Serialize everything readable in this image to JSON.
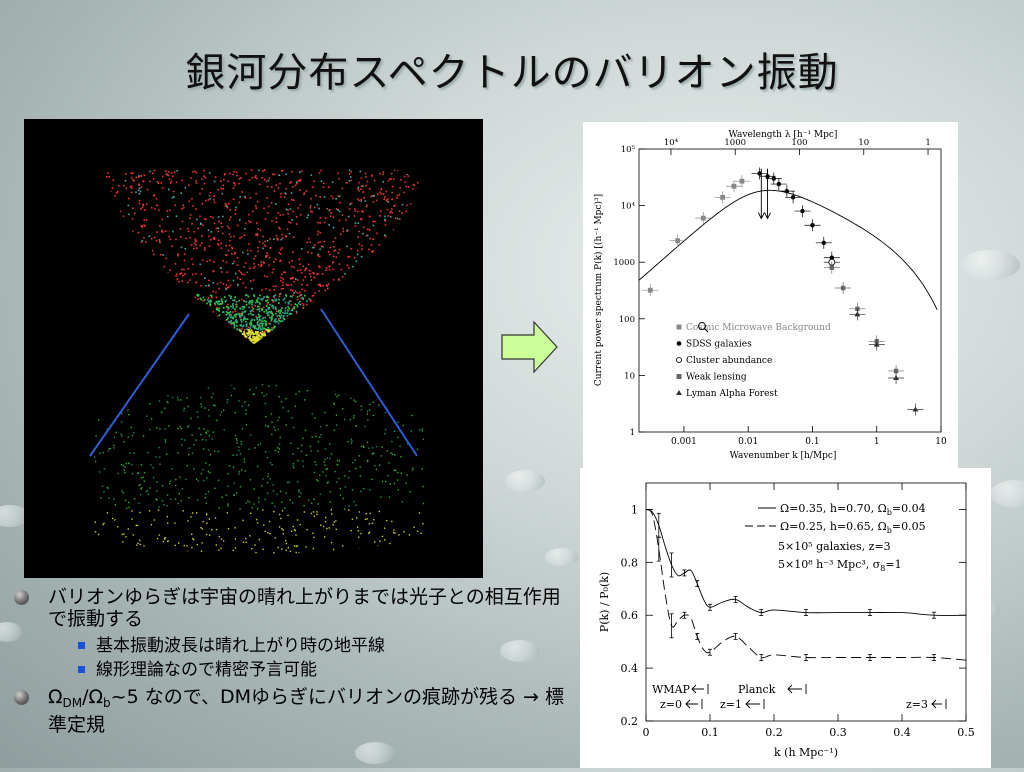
{
  "slide": {
    "title": "銀河分布スペクトルのバリオン振動"
  },
  "bullets": {
    "b1_text": "バリオンゆらぎは宇宙の晴れ上がりまでは光子との相互作用で振動する",
    "b1_sub1": "基本振動波長は晴れ上がり時の地平線",
    "b1_sub2": "線形理論なので精密予言可能",
    "b2_omega": "Ω",
    "b2_dm_sub": "DM",
    "b2_slash": "/Ω",
    "b2_b_sub": "b",
    "b2_rest": "~5 なので、DMゆらぎにバリオンの痕跡が残る → 標準定規"
  },
  "figure1": {
    "top_label": "Wavelength λ [h⁻¹ Mpc]",
    "top_ticks": [
      "10⁴",
      "1000",
      "100",
      "10",
      "1"
    ],
    "ylabel": "Current power spectrum P(k) [(h⁻¹ Mpc)³]",
    "xlabel": "Wavenumber k [h/Mpc]",
    "xticks": [
      "0.001",
      "0.01",
      "0.1",
      "1",
      "10"
    ],
    "yticks": [
      "10⁵",
      "10⁴",
      "1000",
      "100",
      "10",
      "1"
    ],
    "legend": [
      "Cosmic Microwave Background",
      "SDSS galaxies",
      "Cluster abundance",
      "Weak lensing",
      "Lyman Alpha Forest"
    ]
  },
  "figure2": {
    "ylabel": "P(k) / P₀(k)",
    "xlabel": "k (h Mpc⁻¹)",
    "xticks": [
      "0",
      "0.1",
      "0.2",
      "0.3",
      "0.4",
      "0.5"
    ],
    "yticks": [
      "0.2",
      "0.4",
      "0.6",
      "0.8",
      "1"
    ],
    "legend1": "Ω=0.35, h=0.70, Ω",
    "legend1_sub": "b",
    "legend1_end": "=0.04",
    "legend2": "Ω=0.25, h=0.65, Ω",
    "legend2_sub": "b",
    "legend2_end": "=0.05",
    "note1": "5×10⁵ galaxies, z=3",
    "note2": "5×10⁸ h⁻³ Mpc³, σ",
    "note2_sub": "8",
    "note2_end": "=1",
    "wmap": "WMAP",
    "planck": "Planck",
    "z0": "z=0",
    "z1": "z=1",
    "z3": "z=3"
  },
  "chart_data": [
    {
      "type": "scatter",
      "title": "",
      "xlabel": "Wavenumber k [h/Mpc]",
      "ylabel": "Current power spectrum P(k) [(h⁻¹ Mpc)³]",
      "xscale": "log",
      "yscale": "log",
      "xlim": [
        0.0002,
        10
      ],
      "ylim": [
        1,
        100000
      ],
      "series": [
        {
          "name": "Cosmic Microwave Background",
          "x": [
            0.0003,
            0.0008,
            0.002,
            0.004,
            0.006,
            0.008
          ],
          "y": [
            320,
            2400,
            6000,
            14000,
            22000,
            27000
          ]
        },
        {
          "name": "SDSS galaxies",
          "x": [
            0.015,
            0.02,
            0.025,
            0.03,
            0.04,
            0.05,
            0.07,
            0.1,
            0.15,
            0.2
          ],
          "y": [
            37000,
            33000,
            30000,
            24000,
            18000,
            14000,
            8000,
            4500,
            2200,
            1200
          ]
        },
        {
          "name": "Cluster abundance",
          "x": [
            0.2
          ],
          "y": [
            1000
          ]
        },
        {
          "name": "Weak lensing",
          "x": [
            0.2,
            0.3,
            0.5,
            1,
            2
          ],
          "y": [
            800,
            350,
            150,
            40,
            12
          ]
        },
        {
          "name": "Lyman Alpha Forest",
          "x": [
            0.5,
            1,
            2,
            4
          ],
          "y": [
            120,
            35,
            9,
            2.5
          ]
        }
      ]
    },
    {
      "type": "line",
      "title": "",
      "xlabel": "k (h Mpc⁻¹)",
      "ylabel": "P(k) / P₀(k)",
      "xlim": [
        0,
        0.5
      ],
      "ylim": [
        0.2,
        1.1
      ],
      "series": [
        {
          "name": "Ω=0.35, h=0.70, Ωb=0.04",
          "x": [
            0,
            0.01,
            0.02,
            0.03,
            0.04,
            0.05,
            0.06,
            0.07,
            0.08,
            0.09,
            0.1,
            0.12,
            0.14,
            0.16,
            0.18,
            0.2,
            0.25,
            0.3,
            0.35,
            0.4,
            0.45,
            0.5
          ],
          "y": [
            1.0,
            0.99,
            0.94,
            0.86,
            0.79,
            0.75,
            0.76,
            0.77,
            0.72,
            0.66,
            0.63,
            0.65,
            0.66,
            0.63,
            0.61,
            0.62,
            0.61,
            0.61,
            0.61,
            0.61,
            0.6,
            0.6
          ]
        },
        {
          "name": "Ω=0.25, h=0.65, Ωb=0.05",
          "x": [
            0,
            0.01,
            0.02,
            0.03,
            0.04,
            0.05,
            0.06,
            0.07,
            0.08,
            0.09,
            0.1,
            0.12,
            0.14,
            0.16,
            0.18,
            0.2,
            0.25,
            0.3,
            0.35,
            0.4,
            0.45,
            0.5
          ],
          "y": [
            1.0,
            0.98,
            0.85,
            0.68,
            0.56,
            0.58,
            0.6,
            0.59,
            0.52,
            0.47,
            0.46,
            0.5,
            0.52,
            0.48,
            0.44,
            0.45,
            0.44,
            0.44,
            0.44,
            0.44,
            0.44,
            0.43
          ]
        }
      ]
    }
  ]
}
